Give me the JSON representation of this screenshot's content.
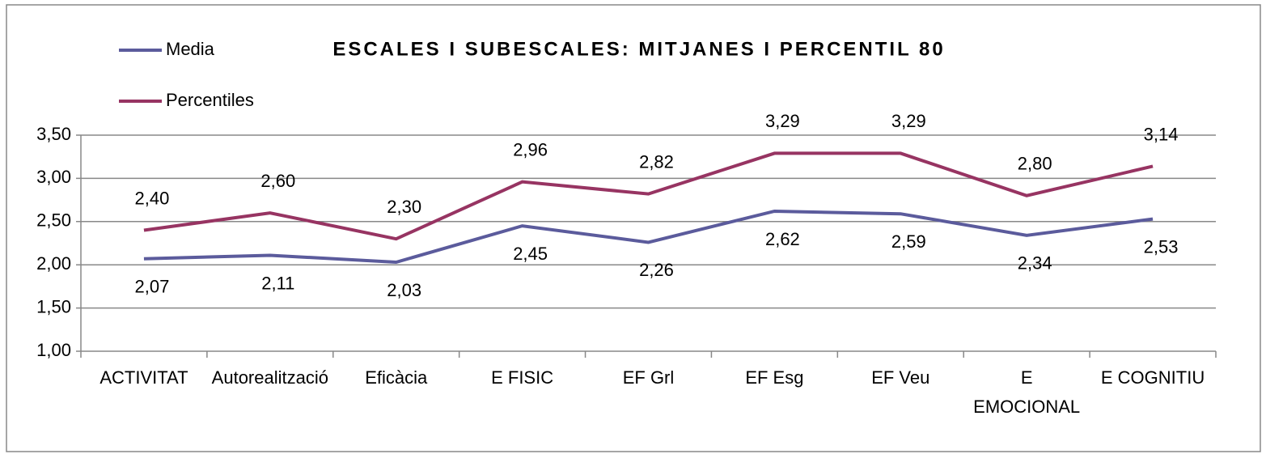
{
  "chart_data": {
    "type": "line",
    "title": "ESCALES I SUBESCALES: MITJANES I PERCENTIL 80",
    "categories": [
      "ACTIVITAT",
      "Autorealització",
      "Eficàcia",
      "E FISIC",
      "EF Grl",
      "EF Esg",
      "EF Veu",
      "E EMOCIONAL",
      "E COGNITIU"
    ],
    "series": [
      {
        "name": "Media",
        "color": "#5b5b9c",
        "values": [
          2.07,
          2.11,
          2.03,
          2.45,
          2.26,
          2.62,
          2.59,
          2.34,
          2.53
        ],
        "value_labels": [
          "2,07",
          "2,11",
          "2,03",
          "2,45",
          "2,26",
          "2,62",
          "2,59",
          "2,34",
          "2,53"
        ]
      },
      {
        "name": "Percentiles",
        "color": "#973462",
        "values": [
          2.4,
          2.6,
          2.3,
          2.96,
          2.82,
          3.29,
          3.29,
          2.8,
          3.14
        ],
        "value_labels": [
          "2,40",
          "2,60",
          "2,30",
          "2,96",
          "2,82",
          "3,29",
          "3,29",
          "2,80",
          "3,14"
        ]
      }
    ],
    "ylim": [
      1.0,
      3.5
    ],
    "yticks": [
      {
        "value": 1.0,
        "label": "1,00"
      },
      {
        "value": 1.5,
        "label": "1,50"
      },
      {
        "value": 2.0,
        "label": "2,00"
      },
      {
        "value": 2.5,
        "label": "2,50"
      },
      {
        "value": 3.0,
        "label": "3,00"
      },
      {
        "value": 3.5,
        "label": "3,50"
      }
    ],
    "grid": true,
    "legend": "top-left"
  }
}
